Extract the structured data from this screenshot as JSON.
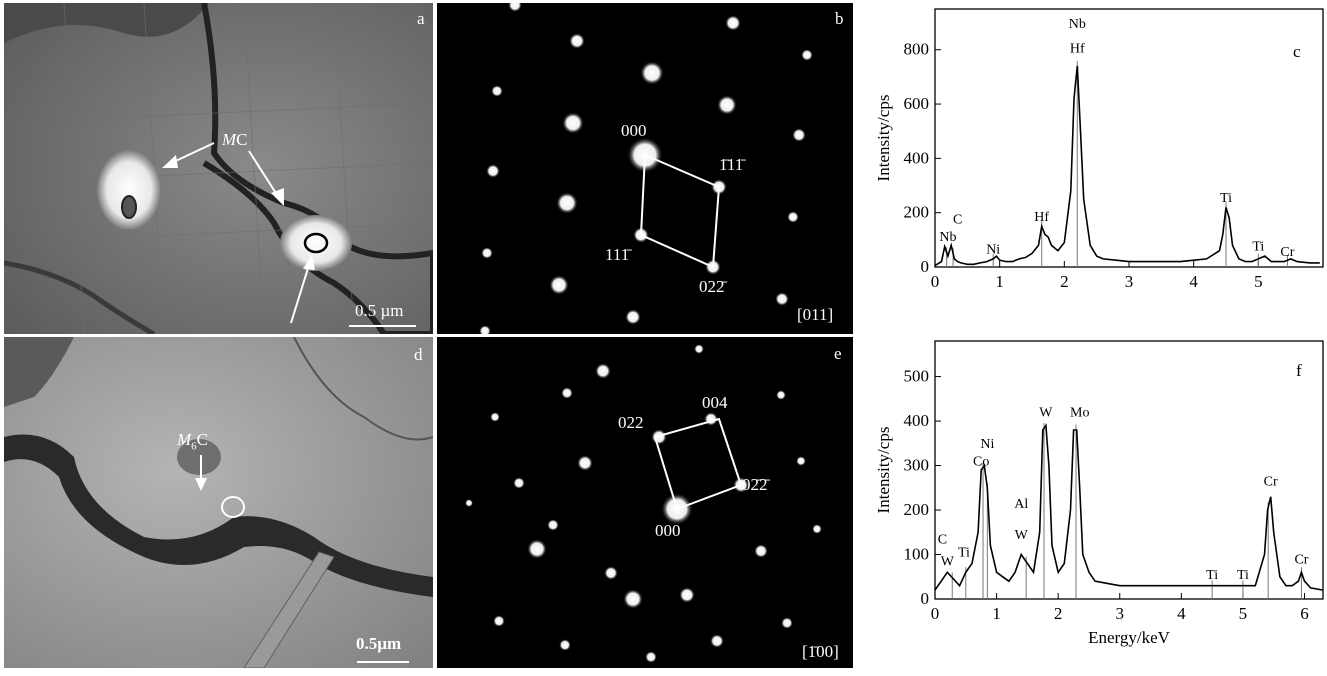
{
  "panels": {
    "a": {
      "label": "a",
      "phase_label": "MC",
      "phase_main": "M",
      "phase_rest": "C",
      "scale": "0.5 µm"
    },
    "b": {
      "label": "b",
      "zone_axis": "[011]",
      "spot_000": "000",
      "spot_111bar": "1̄11̄",
      "spot_111": "111̄",
      "spot_022": "022̄"
    },
    "c": {
      "label": "c"
    },
    "d": {
      "label": "d",
      "phase_main": "M",
      "phase_sub": "6",
      "phase_rest": "C",
      "scale": "0.5µm"
    },
    "e": {
      "label": "e",
      "zone_axis": "[1̄00]",
      "spot_000": "000",
      "spot_022": "022",
      "spot_004": "004",
      "spot_02bar2bar": "02̄2̄"
    },
    "f": {
      "label": "f"
    }
  },
  "chart_data": [
    {
      "type": "line",
      "panel": "c",
      "ylabel": "Intensity/cps",
      "xlabel": "",
      "xlim": [
        0,
        6
      ],
      "ylim": [
        0,
        950
      ],
      "xticks": [
        0,
        1,
        2,
        3,
        4,
        5
      ],
      "yticks": [
        0,
        200,
        400,
        600,
        800
      ],
      "series": [
        {
          "x": [
            0,
            0.1,
            0.15,
            0.2,
            0.25,
            0.3,
            0.35,
            0.4,
            0.5,
            0.6,
            0.7,
            0.8,
            0.9,
            0.95,
            1.0,
            1.1,
            1.2,
            1.3,
            1.4,
            1.5,
            1.6,
            1.65,
            1.7,
            1.75,
            1.8,
            1.9,
            2.0,
            2.1,
            2.15,
            2.2,
            2.25,
            2.3,
            2.4,
            2.5,
            2.6,
            2.8,
            3.0,
            3.2,
            3.4,
            3.6,
            3.8,
            4.0,
            4.2,
            4.4,
            4.45,
            4.5,
            4.55,
            4.6,
            4.7,
            4.8,
            4.9,
            5.0,
            5.1,
            5.2,
            5.4,
            5.5,
            5.6,
            5.8,
            5.95
          ],
          "y": [
            5,
            20,
            75,
            40,
            80,
            30,
            20,
            15,
            10,
            10,
            15,
            20,
            30,
            40,
            25,
            20,
            20,
            30,
            35,
            50,
            80,
            150,
            120,
            110,
            80,
            60,
            90,
            280,
            620,
            740,
            500,
            250,
            80,
            40,
            30,
            25,
            20,
            20,
            20,
            20,
            20,
            25,
            30,
            60,
            120,
            220,
            180,
            80,
            30,
            20,
            20,
            30,
            40,
            20,
            20,
            30,
            20,
            15,
            15
          ]
        }
      ],
      "annotations": [
        {
          "text": "C",
          "x": 0.35,
          "y": 160
        },
        {
          "text": "Nb",
          "x": 0.2,
          "y": 95
        },
        {
          "text": "Ni",
          "x": 0.9,
          "y": 50
        },
        {
          "text": "Hf",
          "x": 1.65,
          "y": 170
        },
        {
          "text": "Nb",
          "x": 2.2,
          "y": 880
        },
        {
          "text": "Hf",
          "x": 2.2,
          "y": 790
        },
        {
          "text": "Ti",
          "x": 4.5,
          "y": 240
        },
        {
          "text": "Ti",
          "x": 5.0,
          "y": 60
        },
        {
          "text": "Cr",
          "x": 5.45,
          "y": 40
        }
      ],
      "peak_lines": [
        0.18,
        0.28,
        0.9,
        1.65,
        2.2,
        4.5,
        5.0,
        5.45
      ]
    },
    {
      "type": "line",
      "panel": "f",
      "ylabel": "Intensity/cps",
      "xlabel": "Energy/keV",
      "xlim": [
        0,
        6.3
      ],
      "ylim": [
        0,
        580
      ],
      "xticks": [
        0,
        1,
        2,
        3,
        4,
        5,
        6
      ],
      "yticks": [
        0,
        100,
        200,
        300,
        400,
        500
      ],
      "series": [
        {
          "x": [
            0,
            0.1,
            0.2,
            0.3,
            0.4,
            0.5,
            0.6,
            0.7,
            0.75,
            0.8,
            0.85,
            0.9,
            1.0,
            1.1,
            1.2,
            1.3,
            1.4,
            1.45,
            1.5,
            1.6,
            1.7,
            1.75,
            1.8,
            1.85,
            1.9,
            2.0,
            2.1,
            2.2,
            2.25,
            2.3,
            2.35,
            2.4,
            2.5,
            2.6,
            2.8,
            3.0,
            3.5,
            4.0,
            4.5,
            5.0,
            5.2,
            5.35,
            5.4,
            5.45,
            5.5,
            5.6,
            5.7,
            5.8,
            5.9,
            5.95,
            6.0,
            6.1,
            6.3
          ],
          "y": [
            20,
            40,
            60,
            45,
            30,
            60,
            80,
            150,
            290,
            300,
            250,
            120,
            60,
            50,
            40,
            60,
            100,
            90,
            80,
            60,
            150,
            380,
            390,
            300,
            120,
            60,
            80,
            200,
            380,
            380,
            250,
            100,
            60,
            40,
            35,
            30,
            30,
            30,
            30,
            30,
            30,
            100,
            200,
            230,
            150,
            50,
            30,
            30,
            40,
            60,
            40,
            25,
            20
          ]
        }
      ],
      "annotations": [
        {
          "text": "C",
          "x": 0.12,
          "y": 125
        },
        {
          "text": "W",
          "x": 0.2,
          "y": 75
        },
        {
          "text": "Ti",
          "x": 0.47,
          "y": 95
        },
        {
          "text": "Ni",
          "x": 0.85,
          "y": 340
        },
        {
          "text": "Co",
          "x": 0.75,
          "y": 300
        },
        {
          "text": "Al",
          "x": 1.4,
          "y": 205
        },
        {
          "text": "W",
          "x": 1.4,
          "y": 135
        },
        {
          "text": "W",
          "x": 1.8,
          "y": 410
        },
        {
          "text": "Mo",
          "x": 2.35,
          "y": 410
        },
        {
          "text": "Ti",
          "x": 4.5,
          "y": 45
        },
        {
          "text": "Ti",
          "x": 5.0,
          "y": 45
        },
        {
          "text": "Cr",
          "x": 5.45,
          "y": 255
        },
        {
          "text": "Cr",
          "x": 5.95,
          "y": 80
        }
      ],
      "peak_lines": [
        0.28,
        0.5,
        0.78,
        0.85,
        1.48,
        1.77,
        2.29,
        4.5,
        5.0,
        5.41,
        5.95
      ]
    }
  ]
}
